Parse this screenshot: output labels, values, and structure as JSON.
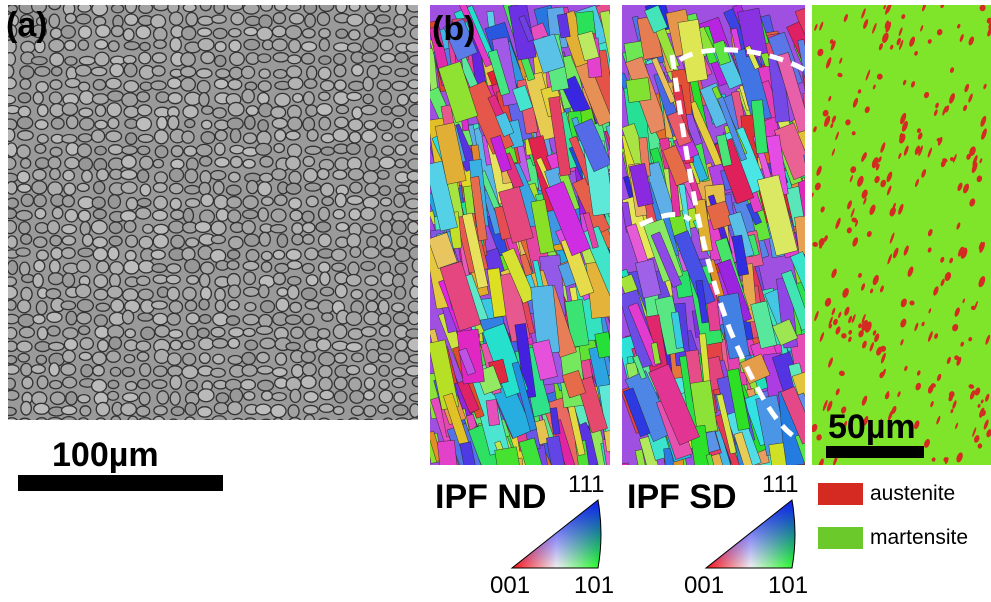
{
  "panels": [
    {
      "label": "(a)",
      "scale_bar": "100µm"
    },
    {
      "label": "(b)"
    }
  ],
  "ipf_maps": [
    {
      "title": "IPF ND",
      "corners": [
        "111",
        "001",
        "101"
      ]
    },
    {
      "title": "IPF SD",
      "corners": [
        "111",
        "001",
        "101"
      ]
    }
  ],
  "phase_map": {
    "scale_bar": "50µm",
    "legend": [
      {
        "name": "austenite",
        "color": "#d42a22"
      },
      {
        "name": "martensite",
        "color": "#6cc92c"
      }
    ]
  }
}
